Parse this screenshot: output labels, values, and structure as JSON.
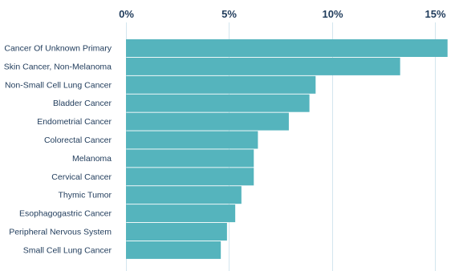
{
  "chart_data": {
    "type": "bar",
    "orientation": "horizontal",
    "categories": [
      "Cancer Of Unknown Primary",
      "Skin Cancer, Non-Melanoma",
      "Non-Small Cell Lung Cancer",
      "Bladder Cancer",
      "Endometrial Cancer",
      "Colorectal Cancer",
      "Melanoma",
      "Cervical Cancer",
      "Thymic Tumor",
      "Esophagogastric Cancer",
      "Peripheral Nervous System",
      "Small Cell Lung Cancer"
    ],
    "values": [
      15.6,
      13.3,
      9.2,
      8.9,
      7.9,
      6.4,
      6.2,
      6.2,
      5.6,
      5.3,
      4.9,
      4.6
    ],
    "x_ticks": [
      "0%",
      "5%",
      "10%",
      "15%"
    ],
    "x_tick_values": [
      0,
      5,
      10,
      15
    ],
    "xlim": [
      0,
      16
    ],
    "grid": true,
    "legend": "none",
    "bar_color": "#55b4bd",
    "label_color": "#1f3b5b",
    "grid_color": "#d3e6ee"
  }
}
